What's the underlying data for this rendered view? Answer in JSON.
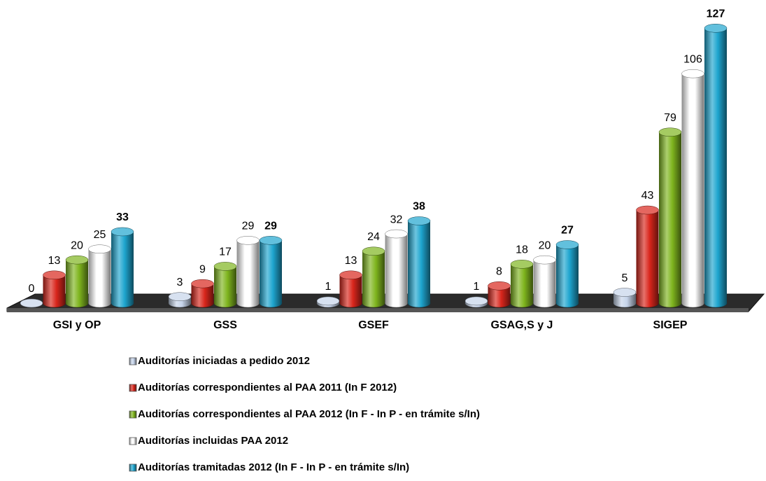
{
  "chart_data": {
    "type": "bar",
    "categories": [
      "GSI y OP",
      "GSS",
      "GSEF",
      "GSAG,S y J",
      "SIGEP"
    ],
    "series": [
      {
        "name": "Auditorías iniciadas a pedido 2012",
        "color": "#c6d4ea",
        "values": [
          0,
          3,
          1,
          1,
          5
        ]
      },
      {
        "name": "Auditorías correspondientes al PAA 2011 (In F 2012)",
        "color": "#d9261c",
        "values": [
          13,
          9,
          13,
          8,
          43
        ]
      },
      {
        "name": "Auditorías correspondientes al PAA 2012 (In F - In P - en trámite s/In)",
        "color": "#7fb51e",
        "values": [
          20,
          17,
          24,
          18,
          79
        ]
      },
      {
        "name": "Auditorías incluidas PAA  2012",
        "color": "#ffffff",
        "values": [
          25,
          29,
          32,
          20,
          106
        ]
      },
      {
        "name": "Auditorías tramitadas 2012 (In F - In P - en trámite s/In)",
        "color": "#1ea5cf",
        "values": [
          33,
          29,
          38,
          27,
          127
        ]
      }
    ],
    "ylim": [
      0,
      130
    ]
  }
}
